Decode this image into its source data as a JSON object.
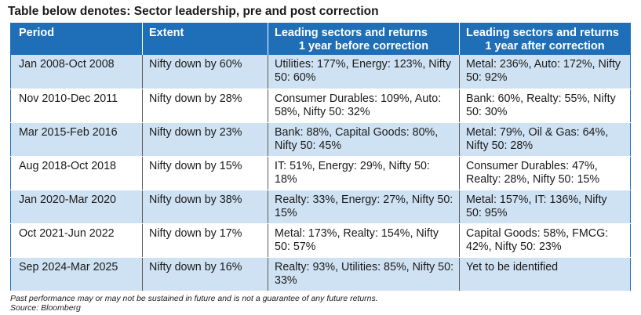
{
  "title": "Table below denotes: Sector leadership, pre and post correction",
  "table": {
    "headers": [
      {
        "l1": "Period",
        "l2": ""
      },
      {
        "l1": "Extent",
        "l2": ""
      },
      {
        "l1": "Leading sectors and returns",
        "l2": "1 year before correction"
      },
      {
        "l1": "Leading sectors and returns",
        "l2": "1 year after correction"
      }
    ],
    "rows": [
      {
        "period": "Jan 2008-Oct 2008",
        "extent": "Nifty down by 60%",
        "before": "Utilities: 177%, Energy: 123%, Nifty 50: 60%",
        "after": "Metal: 236%, Auto: 172%, Nifty 50: 92%"
      },
      {
        "period": "Nov 2010-Dec 2011",
        "extent": "Nifty down by 28%",
        "before": "Consumer Durables: 109%, Auto: 58%, Nifty 50: 32%",
        "after": "Bank: 60%, Realty: 55%, Nifty 50: 30%"
      },
      {
        "period": "Mar 2015-Feb 2016",
        "extent": "Nifty down by 23%",
        "before": "Bank: 88%, Capital Goods: 80%, Nifty 50: 45%",
        "after": "Metal: 79%, Oil & Gas: 64%, Nifty 50: 28%"
      },
      {
        "period": "Aug 2018-Oct 2018",
        "extent": "Nifty down by 15%",
        "before": "IT: 51%, Energy: 29%, Nifty 50: 18%",
        "after": "Consumer Durables: 47%, Realty: 28%, Nifty 50: 15%"
      },
      {
        "period": "Jan 2020-Mar 2020",
        "extent": "Nifty down by 38%",
        "before": "Realty: 33%, Energy: 27%, Nifty 50: 15%",
        "after": "Metal: 157%, IT: 136%, Nifty 50: 95%"
      },
      {
        "period": "Oct 2021-Jun 2022",
        "extent": "Nifty down by 17%",
        "before": "Metal: 173%, Realty: 154%, Nifty 50: 57%",
        "after": "Capital Goods: 58%, FMCG: 42%, Nifty 50: 23%"
      },
      {
        "period": "Sep 2024-Mar 2025",
        "extent": "Nifty down by 16%",
        "before": "Realty: 93%, Utilities: 85%, Nifty 50: 33%",
        "after": "Yet to be identified"
      }
    ]
  },
  "footnote": {
    "disclaimer": "Past performance may or may not be sustained in future and is not a guarantee of any future returns.",
    "source": "Source: Bloomberg"
  },
  "colors": {
    "header_bg": "#1f6fb8",
    "stripe": "#cfe2f3"
  }
}
